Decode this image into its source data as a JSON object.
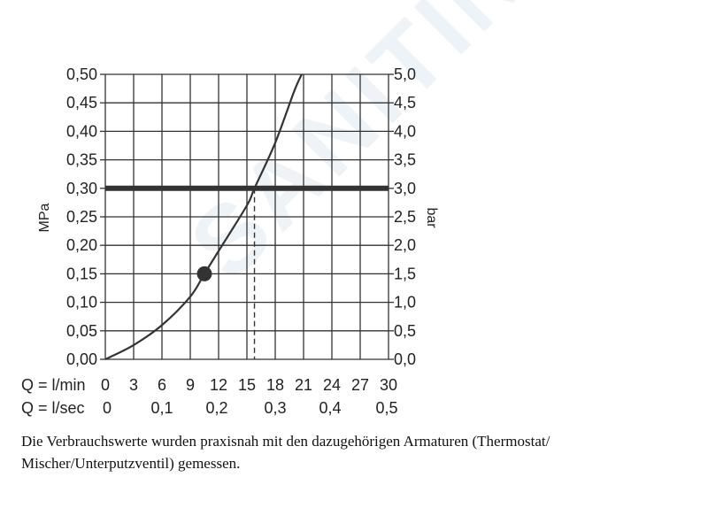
{
  "watermark": "SANITINO",
  "caption": {
    "line1": "Die Verbrauchswerte wurden praxisnah mit den dazugehörigen Armaturen (Thermostat/",
    "line2": "Mischer/Unterputzventil) gemessen."
  },
  "chart_data": {
    "type": "line",
    "ylabel_left": "MPa",
    "ylabel_right": "bar",
    "y_left_ticks": [
      "0,00",
      "0,05",
      "0,10",
      "0,15",
      "0,20",
      "0,25",
      "0,30",
      "0,35",
      "0,40",
      "0,45",
      "0,50"
    ],
    "y_right_ticks": [
      "0,0",
      "0,5",
      "1,0",
      "1,5",
      "2,0",
      "2,5",
      "3,0",
      "3,5",
      "4,0",
      "4,5",
      "5,0"
    ],
    "ylim": [
      0,
      0.5
    ],
    "xlim": [
      0,
      30
    ],
    "x_row1_label": "Q = l/min",
    "x_row1_ticks": [
      "0",
      "3",
      "6",
      "9",
      "12",
      "15",
      "18",
      "21",
      "24",
      "27",
      "30"
    ],
    "x_row2_label": "Q = l/sec",
    "x_row2_ticks": [
      "0",
      "0,1",
      "0,2",
      "0,3",
      "0,4",
      "0,5"
    ],
    "grid": true,
    "series": [
      {
        "x": [
          0,
          3,
          6,
          9,
          10.5,
          12,
          15,
          15.8,
          18,
          20,
          20.8
        ],
        "y": [
          0,
          0.025,
          0.06,
          0.11,
          0.15,
          0.19,
          0.27,
          0.3,
          0.38,
          0.47,
          0.5
        ]
      }
    ],
    "highlight_point": {
      "x": 10.5,
      "y": 0.15
    },
    "reference_line": {
      "y": 0.3
    },
    "reference_drop": {
      "x": 15.8,
      "y": 0.3
    }
  }
}
